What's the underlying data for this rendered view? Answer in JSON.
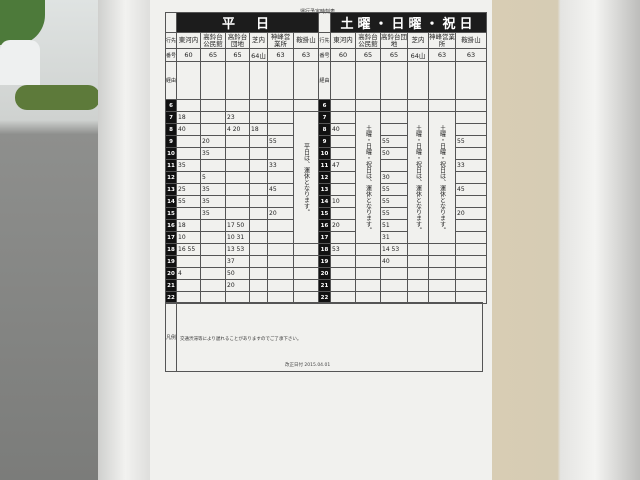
{
  "sheet_title": "運行予定時刻表",
  "labels": {
    "destination": "行先",
    "number": "番号",
    "via": "経由",
    "notes": "凡例"
  },
  "hours": [
    "6",
    "7",
    "8",
    "9",
    "10",
    "11",
    "12",
    "13",
    "14",
    "15",
    "16",
    "17",
    "18",
    "19",
    "20",
    "21",
    "22"
  ],
  "weekday": {
    "title": "平　日",
    "routes": [
      {
        "name": "東河内",
        "number": "60",
        "suspended": false,
        "times": {
          "7": "18",
          "8": "40",
          "11": "35",
          "13": "25",
          "14": "55",
          "16": "18",
          "17": "10",
          "18": "16 55",
          "20": "4"
        }
      },
      {
        "name": "高鈴台公民館",
        "number": "65",
        "suspended": false,
        "times": {
          "9": "20",
          "10": "35",
          "12": "5",
          "13": "35",
          "14": "35",
          "15": "35"
        }
      },
      {
        "name": "高鈴台団地",
        "number": "65",
        "suspended": false,
        "times": {
          "7": "23",
          "8": "4 20",
          "16": "17 50",
          "17": "10 31",
          "18": "13 53",
          "19": "37",
          "20": "50",
          "21": "20"
        }
      },
      {
        "name": "芝内",
        "number": "64山",
        "suspended": false,
        "times": {
          "8": "18"
        }
      },
      {
        "name": "神峰営業所",
        "number": "63",
        "suspended": false,
        "times": {
          "9": "55",
          "11": "33",
          "13": "45",
          "15": "20"
        }
      },
      {
        "name": "鞍掛山",
        "number": "63",
        "suspended": true,
        "suspend_text": "平日は、運休となります。",
        "times": {}
      }
    ]
  },
  "weekend": {
    "title": "土曜・日曜・祝日",
    "routes": [
      {
        "name": "東河内",
        "number": "60",
        "suspended": false,
        "times": {
          "8": "40",
          "11": "47",
          "14": "10",
          "16": "20",
          "18": "53"
        }
      },
      {
        "name": "高鈴台公民館",
        "number": "65",
        "suspended": true,
        "suspend_text": "土曜・日曜・祝日は、運休となります。",
        "times": {}
      },
      {
        "name": "高鈴台団地",
        "number": "65",
        "suspended": false,
        "times": {
          "9": "55",
          "10": "50",
          "12": "30",
          "13": "55",
          "14": "55",
          "15": "55",
          "16": "51",
          "17": "31",
          "18": "14 53",
          "19": "40"
        }
      },
      {
        "name": "芝内",
        "number": "64山",
        "suspended": true,
        "suspend_text": "土曜・日曜・祝日は、運休となります。",
        "times": {}
      },
      {
        "name": "神峰営業所",
        "number": "63",
        "suspended": true,
        "suspend_text": "土曜・日曜・祝日は、運休となります。",
        "times": {}
      },
      {
        "name": "鞍掛山",
        "number": "63",
        "suspended": false,
        "times": {
          "9": "55",
          "11": "33",
          "13": "45",
          "15": "20"
        }
      }
    ]
  },
  "notes": {
    "note": "交通渋滞等により遅れることがありますのでご了承下さい。"
  },
  "footer": "改正日付 2015.04.01"
}
